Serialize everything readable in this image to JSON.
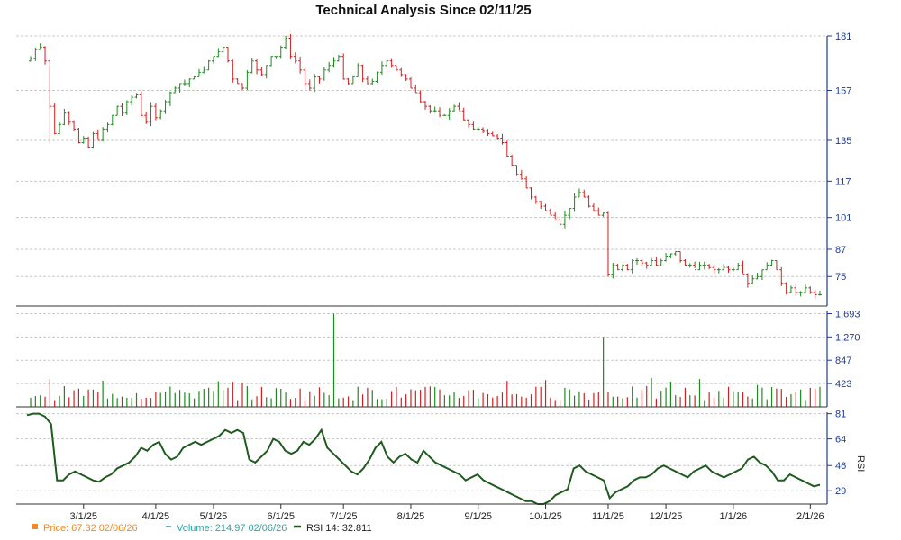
{
  "chart_data": {
    "type": "line",
    "title": "Technical Analysis Since 02/11/25",
    "colors": {
      "up": "#1e8a1e",
      "down": "#d22020",
      "rsi": "#1f5a1f",
      "grid": "#c8c8c8",
      "axis": "#1f3a93",
      "price_legend": "#f08a24",
      "volume_legend": "#2aa5a5"
    },
    "x_ticks": [
      "3/1/25",
      "4/1/25",
      "5/1/25",
      "6/1/25",
      "7/1/25",
      "8/1/25",
      "9/1/25",
      "10/1/25",
      "11/1/25",
      "12/1/25",
      "1/1/26",
      "2/1/26"
    ],
    "price_panel": {
      "ylim": [
        62,
        181
      ],
      "y_ticks": [
        181,
        157,
        135,
        117,
        101,
        87,
        75
      ],
      "series": [
        {
          "month": "2025-02",
          "values": [
            171,
            175,
            176,
            170,
            150,
            138,
            142,
            147,
            143,
            140,
            134
          ]
        },
        {
          "month": "2025-03",
          "values": [
            136,
            132,
            138,
            135,
            140,
            142,
            146,
            150,
            147,
            152,
            154,
            155,
            146,
            143,
            150
          ]
        },
        {
          "month": "2025-04",
          "values": [
            145,
            148,
            152,
            156,
            158,
            160,
            160,
            162,
            163,
            165,
            166,
            170
          ]
        },
        {
          "month": "2025-05",
          "values": [
            172,
            174,
            176,
            170,
            162,
            160,
            158,
            165,
            170,
            166,
            164,
            168,
            172,
            172
          ]
        },
        {
          "month": "2025-06",
          "values": [
            176,
            180,
            172,
            170,
            166,
            160,
            158,
            163,
            162,
            166,
            168,
            170,
            172
          ]
        },
        {
          "month": "2025-07",
          "values": [
            162,
            160,
            163,
            168,
            162,
            160,
            161,
            165,
            168,
            170,
            168,
            166,
            164,
            162
          ]
        },
        {
          "month": "2025-08",
          "values": [
            158,
            156,
            152,
            150,
            148,
            148,
            146,
            146,
            148,
            150,
            148,
            144,
            142,
            140
          ]
        },
        {
          "month": "2025-09",
          "values": [
            140,
            139,
            138,
            137,
            136,
            134,
            128,
            124,
            120,
            118,
            114,
            110,
            108,
            106
          ]
        },
        {
          "month": "2025-10",
          "values": [
            104,
            102,
            100,
            98,
            102,
            105,
            110,
            112,
            110,
            106,
            104,
            102,
            103
          ]
        },
        {
          "month": "2025-11",
          "values": [
            76,
            80,
            78,
            80,
            78,
            82,
            82,
            81,
            80,
            82,
            80,
            82
          ]
        },
        {
          "month": "2025-12",
          "values": [
            84,
            85,
            86,
            82,
            80,
            80,
            78,
            80,
            80,
            79,
            78,
            78,
            79,
            78
          ]
        },
        {
          "month": "2026-01",
          "values": [
            78,
            80,
            76,
            72,
            74,
            75,
            78,
            80,
            82,
            78,
            72,
            68,
            70,
            68,
            68,
            70
          ]
        },
        {
          "month": "2026-02",
          "values": [
            68,
            67,
            67
          ]
        }
      ]
    },
    "volume_panel": {
      "ylim": [
        0,
        1750
      ],
      "y_ticks": [
        1693,
        1270,
        847,
        423
      ],
      "spikes": [
        {
          "month": "2025-06",
          "value": 1693
        },
        {
          "month": "2025-10",
          "value": 1270
        }
      ]
    },
    "rsi_panel": {
      "ylim": [
        20,
        82
      ],
      "y_ticks": [
        81,
        64,
        46,
        29
      ],
      "label": "RSI",
      "values": [
        80,
        81,
        81,
        79,
        74,
        36,
        36,
        40,
        42,
        40,
        38,
        36,
        35,
        38,
        40,
        44,
        46,
        48,
        52,
        58,
        56,
        60,
        62,
        54,
        50,
        52,
        58,
        60,
        62,
        60,
        62,
        64,
        66,
        70,
        68,
        70,
        68,
        50,
        48,
        52,
        56,
        64,
        62,
        56,
        54,
        56,
        62,
        60,
        64,
        70,
        58,
        54,
        50,
        46,
        42,
        40,
        44,
        50,
        58,
        62,
        52,
        48,
        52,
        54,
        50,
        48,
        56,
        52,
        48,
        46,
        44,
        42,
        40,
        36,
        38,
        40,
        36,
        34,
        32,
        30,
        28,
        26,
        24,
        22,
        22,
        20,
        20,
        22,
        26,
        28,
        30,
        44,
        46,
        42,
        40,
        38,
        36,
        24,
        28,
        30,
        32,
        36,
        38,
        38,
        40,
        44,
        46,
        44,
        42,
        40,
        38,
        42,
        44,
        46,
        42,
        40,
        38,
        40,
        42,
        44,
        50,
        52,
        48,
        46,
        42,
        36,
        36,
        40,
        38,
        36,
        34,
        32,
        33
      ]
    }
  },
  "legend": {
    "price": "Price: 67.32  02/06/26",
    "volume": "Volume: 214.97  02/06/26",
    "rsi": "RSI 14: 32.811"
  }
}
